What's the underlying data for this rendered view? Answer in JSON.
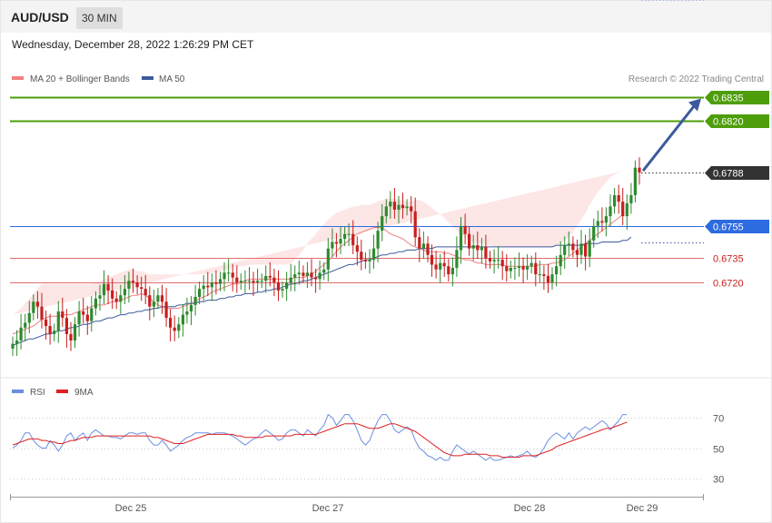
{
  "header": {
    "symbol": "AUD/USD",
    "timeframe": "30 MIN",
    "datetime": "Wednesday, December 28, 2022 1:26:29 PM CET"
  },
  "legend": {
    "ma20_label": "MA 20 + Bollinger Bands",
    "ma50_label": "MA 50",
    "copyright": "Research © 2022 Trading Central",
    "rsi_label": "RSI",
    "ma9_label": "9MA"
  },
  "colors": {
    "ma20": "#f08080",
    "ma50": "#3d5a9e",
    "band_fill": "#fde3e3",
    "green_level": "#4d9e0a",
    "blue_level": "#2d6be0",
    "red_level": "#e07070",
    "current": "#333333",
    "arrow": "#3d5a9e",
    "bull": "#2f8a2f",
    "bear": "#c81e1e",
    "rsi": "#6a8fe0",
    "rsi_ma": "#e02020"
  },
  "chart_data": {
    "type": "candlestick",
    "ylim": [
      0.666,
      0.685
    ],
    "x_labels": [
      "Dec 25",
      "Dec 27",
      "Dec 28",
      "Dec 29"
    ],
    "levels": [
      {
        "value": 0.6835,
        "label": "0.6835",
        "kind": "resistance"
      },
      {
        "value": 0.682,
        "label": "0.6820",
        "kind": "resistance"
      },
      {
        "value": 0.6788,
        "label": "0.6788",
        "kind": "current"
      },
      {
        "value": 0.6755,
        "label": "0.6755",
        "kind": "pivot"
      },
      {
        "value": 0.6735,
        "label": "0.6735",
        "kind": "support"
      },
      {
        "value": 0.672,
        "label": "0.6720",
        "kind": "support"
      }
    ],
    "close": [
      0.6682,
      0.6684,
      0.6692,
      0.6695,
      0.6701,
      0.6708,
      0.6705,
      0.6697,
      0.6693,
      0.6688,
      0.669,
      0.6702,
      0.6698,
      0.6688,
      0.6684,
      0.6694,
      0.6702,
      0.67,
      0.6696,
      0.6704,
      0.671,
      0.6712,
      0.6719,
      0.6715,
      0.671,
      0.6708,
      0.6712,
      0.6716,
      0.6721,
      0.672,
      0.6717,
      0.6716,
      0.6712,
      0.6705,
      0.6708,
      0.6712,
      0.6708,
      0.6698,
      0.6692,
      0.669,
      0.6694,
      0.67,
      0.6702,
      0.6706,
      0.6711,
      0.6716,
      0.6718,
      0.6717,
      0.672,
      0.6719,
      0.6722,
      0.6726,
      0.6726,
      0.6723,
      0.672,
      0.6721,
      0.6721,
      0.6721,
      0.672,
      0.6721,
      0.6721,
      0.6724,
      0.6723,
      0.672,
      0.6715,
      0.6716,
      0.672,
      0.6723,
      0.6725,
      0.6726,
      0.6724,
      0.6726,
      0.6723,
      0.6722,
      0.6726,
      0.6728,
      0.6741,
      0.6745,
      0.6744,
      0.6747,
      0.675,
      0.675,
      0.6743,
      0.6739,
      0.6734,
      0.6733,
      0.6734,
      0.6741,
      0.6752,
      0.6761,
      0.6767,
      0.677,
      0.6765,
      0.6768,
      0.6766,
      0.6767,
      0.6764,
      0.6748,
      0.6741,
      0.6744,
      0.6737,
      0.6731,
      0.6728,
      0.6732,
      0.673,
      0.6725,
      0.6729,
      0.674,
      0.6755,
      0.675,
      0.6741,
      0.6743,
      0.674,
      0.6742,
      0.6735,
      0.6733,
      0.6734,
      0.6734,
      0.673,
      0.6727,
      0.6729,
      0.6729,
      0.673,
      0.6728,
      0.673,
      0.6732,
      0.6725,
      0.6725,
      0.6724,
      0.672,
      0.6725,
      0.673,
      0.6737,
      0.6743,
      0.6744,
      0.674,
      0.6737,
      0.6744,
      0.6736,
      0.6746,
      0.6755,
      0.6758,
      0.6757,
      0.6761,
      0.6767,
      0.6774,
      0.677,
      0.6761,
      0.6769,
      0.6774,
      0.6791,
      0.6788
    ],
    "ma20": [
      0.6688,
      0.6689,
      0.669,
      0.6691,
      0.6692,
      0.6693,
      0.6695,
      0.6697,
      0.6698,
      0.6699,
      0.6699,
      0.6699,
      0.67,
      0.67,
      0.67,
      0.6701,
      0.6702,
      0.6703,
      0.6704,
      0.6705,
      0.6706,
      0.6706,
      0.6706,
      0.6707,
      0.6708,
      0.6708,
      0.6709,
      0.671,
      0.6711,
      0.6712,
      0.6712,
      0.6713,
      0.6712,
      0.671,
      0.6708,
      0.6706,
      0.6705,
      0.6704,
      0.6704,
      0.6704,
      0.6704,
      0.6705,
      0.6706,
      0.6707,
      0.6708,
      0.671,
      0.6711,
      0.6712,
      0.6714,
      0.6715,
      0.6716,
      0.6717,
      0.6718,
      0.6719,
      0.6719,
      0.672,
      0.6721,
      0.6722,
      0.6722,
      0.6722,
      0.6722,
      0.6722,
      0.6722,
      0.6722,
      0.6722,
      0.6722,
      0.6722,
      0.6722,
      0.6723,
      0.6723,
      0.6723,
      0.6724,
      0.6725,
      0.6727,
      0.6729,
      0.6731,
      0.6733,
      0.6736,
      0.6739,
      0.6742,
      0.6744,
      0.6746,
      0.6748,
      0.675,
      0.6751,
      0.6752,
      0.6753,
      0.6754,
      0.6754,
      0.6754,
      0.6752,
      0.675,
      0.6749,
      0.6748,
      0.6747,
      0.6745,
      0.6743,
      0.6742,
      0.6741,
      0.674,
      0.6739,
      0.6739,
      0.6739,
      0.6739,
      0.6738,
      0.6738,
      0.6737,
      0.6736,
      0.6735,
      0.6734,
      0.6734,
      0.6733,
      0.6732,
      0.6732,
      0.6731,
      0.6731,
      0.6731,
      0.6731,
      0.6731,
      0.673,
      0.673,
      0.673,
      0.673,
      0.673,
      0.673,
      0.673,
      0.673,
      0.6731,
      0.6731,
      0.6731,
      0.6732,
      0.6732,
      0.6733,
      0.6734,
      0.6736,
      0.6738,
      0.674,
      0.6742,
      0.6744,
      0.6746,
      0.6748,
      0.675,
      0.6752,
      0.6754,
      0.6756,
      0.6758,
      0.676,
      0.6762
    ],
    "ma50": [
      0.6681,
      0.6682,
      0.6683,
      0.6684,
      0.6685,
      0.6685,
      0.6686,
      0.6687,
      0.6688,
      0.6688,
      0.6689,
      0.669,
      0.669,
      0.6691,
      0.6692,
      0.6692,
      0.6693,
      0.6694,
      0.6694,
      0.6695,
      0.6696,
      0.6696,
      0.6697,
      0.6698,
      0.6698,
      0.6699,
      0.67,
      0.67,
      0.6701,
      0.6701,
      0.6702,
      0.6702,
      0.6703,
      0.6703,
      0.6704,
      0.6704,
      0.6705,
      0.6705,
      0.6705,
      0.6705,
      0.6706,
      0.6706,
      0.6707,
      0.6707,
      0.6707,
      0.6708,
      0.6708,
      0.6709,
      0.6709,
      0.6709,
      0.671,
      0.671,
      0.6711,
      0.6711,
      0.6712,
      0.6712,
      0.6713,
      0.6713,
      0.6713,
      0.6714,
      0.6714,
      0.6715,
      0.6715,
      0.6716,
      0.6716,
      0.6717,
      0.6718,
      0.6719,
      0.6719,
      0.672,
      0.6721,
      0.6721,
      0.6722,
      0.6723,
      0.6724,
      0.6725,
      0.6726,
      0.6727,
      0.6728,
      0.6729,
      0.673,
      0.6731,
      0.6731,
      0.6732,
      0.6733,
      0.6734,
      0.6734,
      0.6735,
      0.6736,
      0.6737,
      0.6737,
      0.6738,
      0.6738,
      0.6739,
      0.6739,
      0.674,
      0.674,
      0.674,
      0.6741,
      0.6741,
      0.6741,
      0.6741,
      0.6742,
      0.6742,
      0.6742,
      0.6742,
      0.6742,
      0.6742,
      0.6742,
      0.6742,
      0.6742,
      0.6742,
      0.6742,
      0.6742,
      0.6742,
      0.6742,
      0.6742,
      0.6742,
      0.6742,
      0.6742,
      0.6742,
      0.6742,
      0.6742,
      0.6742,
      0.6742,
      0.6742,
      0.6742,
      0.6742,
      0.6742,
      0.6742,
      0.6742,
      0.6743,
      0.6743,
      0.6743,
      0.6743,
      0.6743,
      0.6743,
      0.6743,
      0.6744,
      0.6744,
      0.6744,
      0.6744,
      0.6745,
      0.6745,
      0.6745,
      0.6745,
      0.6745,
      0.6746,
      0.6746,
      0.6748
    ],
    "band_upper": [
      0.67,
      0.6702,
      0.6704,
      0.6707,
      0.671,
      0.6713,
      0.6716,
      0.6719,
      0.6719,
      0.6719,
      0.6719,
      0.6719,
      0.6719,
      0.6719,
      0.6719,
      0.6719,
      0.6719,
      0.6719,
      0.6719,
      0.6719,
      0.672,
      0.6721,
      0.6722,
      0.6723,
      0.6724,
      0.6725,
      0.6726,
      0.6727,
      0.6728,
      0.6728,
      0.6727,
      0.6727,
      0.6726,
      0.6725,
      0.6725,
      0.6725,
      0.6725,
      0.6725,
      0.6725,
      0.6725,
      0.6725,
      0.6725,
      0.6725,
      0.6725,
      0.6725,
      0.6725,
      0.6725,
      0.6725,
      0.6726,
      0.6726,
      0.6727,
      0.6728,
      0.6728,
      0.6729,
      0.673,
      0.673,
      0.673,
      0.6731,
      0.6731,
      0.6731,
      0.6731,
      0.6731,
      0.6731,
      0.6731,
      0.6731,
      0.6731,
      0.6731,
      0.6732,
      0.6734,
      0.6737,
      0.674,
      0.6744,
      0.6747,
      0.675,
      0.6753,
      0.6756,
      0.6759,
      0.6761,
      0.6763,
      0.6764,
      0.6765,
      0.6766,
      0.6767,
      0.6767,
      0.6768,
      0.6768,
      0.6768,
      0.6769,
      0.677,
      0.6771,
      0.6772,
      0.6772,
      0.6772,
      0.6771,
      0.6771,
      0.677,
      0.677,
      0.6771,
      0.6771,
      0.677,
      0.6768,
      0.6766,
      0.6764,
      0.6762,
      0.676,
      0.6757,
      0.6755,
      0.6752,
      0.675,
      0.6748,
      0.6746,
      0.6745,
      0.6744,
      0.6744,
      0.6743,
      0.6743,
      0.6742,
      0.6742,
      0.6742,
      0.6742,
      0.6742,
      0.6742,
      0.6742,
      0.6742,
      0.6742,
      0.6742,
      0.6742,
      0.6742,
      0.6742,
      0.6742,
      0.6742,
      0.6743,
      0.6744,
      0.6746,
      0.6748,
      0.6751,
      0.6755,
      0.6759,
      0.6763,
      0.6768,
      0.6772,
      0.6776,
      0.6779,
      0.6782,
      0.6785,
      0.6787,
      0.6788,
      0.6789
    ],
    "band_lower": [
      0.6665,
      0.6665,
      0.6665,
      0.6666,
      0.6666,
      0.6667,
      0.6668,
      0.6669,
      0.667,
      0.6671,
      0.6672,
      0.6673,
      0.6674,
      0.6675,
      0.6676,
      0.6677,
      0.6678,
      0.6679,
      0.668,
      0.6681,
      0.6682,
      0.6683,
      0.6685,
      0.6686,
      0.6687,
      0.6689,
      0.669,
      0.6691,
      0.6692,
      0.6692,
      0.6692,
      0.6692,
      0.6692,
      0.6691,
      0.669,
      0.6688,
      0.6687,
      0.6686,
      0.6685,
      0.6685,
      0.6685,
      0.6685,
      0.6686,
      0.6687,
      0.6689,
      0.6691,
      0.6694,
      0.6697,
      0.67,
      0.6703,
      0.6705,
      0.6707,
      0.6709,
      0.6711,
      0.6712,
      0.6713,
      0.6714,
      0.6714,
      0.6714,
      0.6714,
      0.6714,
      0.6714,
      0.6714,
      0.6714,
      0.6713,
      0.6713,
      0.6713,
      0.6713,
      0.6713,
      0.6713,
      0.6713,
      0.6713,
      0.6713,
      0.6713,
      0.6713,
      0.6713,
      0.6713,
      0.6714,
      0.6715,
      0.6716,
      0.6717,
      0.6718,
      0.672,
      0.6721,
      0.6722,
      0.6723,
      0.6724,
      0.6725,
      0.6726,
      0.6727,
      0.6728,
      0.6728,
      0.6729,
      0.6729,
      0.6729,
      0.6729,
      0.6729,
      0.6728,
      0.6728,
      0.6727,
      0.6726,
      0.6725,
      0.6724,
      0.6723,
      0.6722,
      0.6721,
      0.672,
      0.6719,
      0.6719,
      0.6718,
      0.6718,
      0.6717,
      0.6716,
      0.6716,
      0.6715,
      0.6715,
      0.6715,
      0.6715,
      0.6715,
      0.6715,
      0.6714,
      0.6714,
      0.6714,
      0.6714,
      0.6714,
      0.6714,
      0.6714,
      0.6714,
      0.6713,
      0.6713,
      0.6713,
      0.6713,
      0.6714,
      0.6714,
      0.6715,
      0.6716,
      0.6718,
      0.672,
      0.6722,
      0.6724,
      0.6726,
      0.6728,
      0.673,
      0.6731,
      0.6732,
      0.6732,
      0.6732,
      0.6732,
      0.6731,
      0.6731
    ],
    "rsi_ylim": [
      20,
      80
    ],
    "rsi_levels": [
      70,
      50,
      30
    ],
    "rsi": [
      50,
      52,
      55,
      60,
      60,
      55,
      52,
      50,
      50,
      55,
      52,
      48,
      52,
      58,
      60,
      55,
      58,
      60,
      55,
      60,
      62,
      60,
      58,
      58,
      57,
      57,
      56,
      58,
      60,
      60,
      59,
      60,
      60,
      55,
      52,
      52,
      55,
      52,
      48,
      50,
      52,
      55,
      57,
      58,
      60,
      60,
      60,
      60,
      59,
      60,
      60,
      60,
      59,
      58,
      56,
      54,
      52,
      54,
      56,
      57,
      60,
      62,
      60,
      58,
      55,
      56,
      60,
      62,
      62,
      60,
      58,
      62,
      60,
      58,
      62,
      65,
      72,
      70,
      65,
      68,
      72,
      72,
      68,
      62,
      55,
      52,
      55,
      62,
      68,
      72,
      72,
      68,
      62,
      60,
      62,
      64,
      62,
      55,
      50,
      48,
      45,
      44,
      42,
      44,
      42,
      42,
      48,
      52,
      50,
      48,
      46,
      48,
      46,
      44,
      42,
      44,
      42,
      42,
      43,
      44,
      45,
      44,
      45,
      46,
      48,
      45,
      44,
      46,
      50,
      55,
      58,
      60,
      58,
      56,
      60,
      56,
      60,
      62,
      64,
      62,
      64,
      66,
      68,
      66,
      62,
      65,
      68,
      72,
      72
    ],
    "rsi_ma": [
      52,
      53,
      54,
      55,
      56,
      56,
      56,
      55,
      55,
      54,
      54,
      53,
      53,
      54,
      55,
      55,
      56,
      57,
      57,
      57,
      58,
      58,
      58,
      58,
      58,
      58,
      58,
      58,
      58,
      58,
      58,
      58,
      58,
      58,
      57,
      57,
      56,
      55,
      54,
      53,
      53,
      53,
      54,
      55,
      56,
      57,
      58,
      59,
      59,
      59,
      59,
      59,
      59,
      59,
      58,
      58,
      57,
      57,
      57,
      57,
      57,
      58,
      58,
      58,
      58,
      58,
      58,
      58,
      59,
      59,
      59,
      59,
      59,
      59,
      60,
      61,
      62,
      63,
      64,
      65,
      66,
      66,
      66,
      66,
      65,
      64,
      63,
      63,
      63,
      64,
      65,
      66,
      66,
      65,
      64,
      63,
      62,
      61,
      59,
      57,
      55,
      53,
      51,
      49,
      47,
      46,
      45,
      45,
      45,
      46,
      46,
      46,
      46,
      46,
      46,
      45,
      45,
      45,
      44,
      44,
      44,
      44,
      44,
      45,
      45,
      45,
      45,
      46,
      47,
      48,
      49,
      51,
      52,
      53,
      54,
      55,
      56,
      57,
      58,
      59,
      60,
      61,
      62,
      63,
      63,
      64,
      65,
      66,
      67
    ]
  }
}
